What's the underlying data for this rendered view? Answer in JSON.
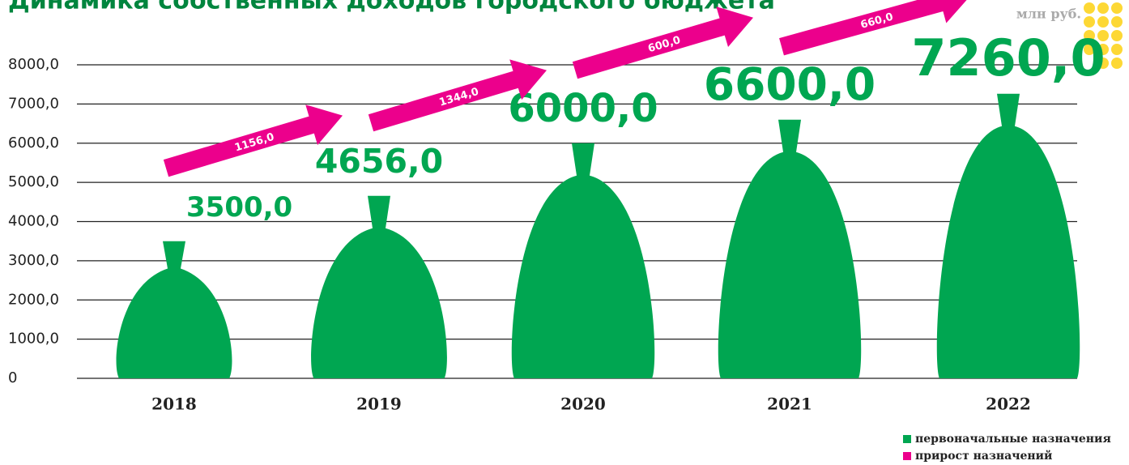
{
  "chart_data": {
    "type": "bar",
    "title": "Динамика собственных доходов городского бюджета",
    "unit": "млн руб.",
    "categories": [
      "2018",
      "2019",
      "2020",
      "2021",
      "2022"
    ],
    "values": [
      3500,
      4656,
      6000,
      6600,
      7260
    ],
    "value_labels": [
      "3500,0",
      "4656,0",
      "6000,0",
      "6600,0",
      "7260,0"
    ],
    "color": "#00a651",
    "increments": {
      "values": [
        1156,
        1344,
        600,
        660
      ],
      "value_labels": [
        "1156,0",
        "1344,0",
        "600,0",
        "660,0"
      ],
      "color": "#ec008c"
    },
    "ylim": [
      0,
      8000
    ],
    "yticks": [
      0,
      {
        "value": 1000,
        "label": "1000,0"
      },
      {
        "value": 2000,
        "label": "2000,0"
      },
      {
        "value": 3000,
        "label": "3000,0"
      },
      {
        "value": 4000,
        "label": "4000,0"
      },
      {
        "value": 5000,
        "label": "5000,0"
      },
      {
        "value": 6000,
        "label": "6000,0"
      },
      {
        "value": 7000,
        "label": "7000,0"
      },
      {
        "value": 8000,
        "label": "8000,0"
      }
    ],
    "grid": true,
    "legend": [
      {
        "name": "первоначальные назначения",
        "color": "#00a651"
      },
      {
        "name": "прирост назначений",
        "color": "#ec008c"
      }
    ]
  }
}
